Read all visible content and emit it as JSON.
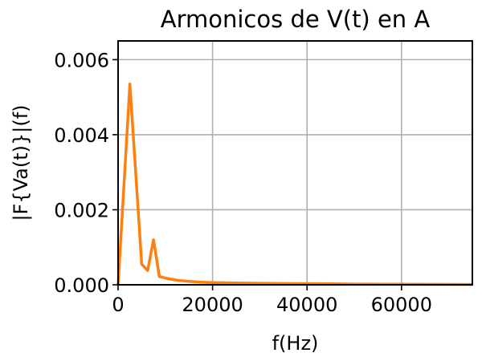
{
  "chart_data": {
    "type": "line",
    "title": "Armonicos de V(t) en A",
    "xlabel": "f(Hz)",
    "ylabel": "|F{Va(t)}|(f)",
    "xlim": [
      0,
      75000
    ],
    "ylim": [
      0,
      0.0065
    ],
    "xticks": [
      0,
      20000,
      40000,
      60000
    ],
    "xtick_labels": [
      "0",
      "20000",
      "40000",
      "60000"
    ],
    "yticks": [
      0,
      0.002,
      0.004,
      0.006
    ],
    "ytick_labels": [
      "0.000",
      "0.002",
      "0.004",
      "0.006"
    ],
    "grid": true,
    "series": [
      {
        "color": "#ff7f0e",
        "x": [
          0,
          2500,
          5000,
          6250,
          7500,
          8750,
          10000,
          12500,
          15000,
          17500,
          20000,
          25000,
          30000,
          35000,
          40000,
          45000,
          50000,
          55000,
          60000,
          65000,
          70000,
          75000
        ],
        "y": [
          0.0,
          0.00535,
          0.00055,
          0.00038,
          0.0012,
          0.00022,
          0.00018,
          0.00012,
          9e-05,
          7e-05,
          6e-05,
          5e-05,
          4e-05,
          3.5e-05,
          3e-05,
          2.5e-05,
          2e-05,
          1.8e-05,
          1.5e-05,
          1.2e-05,
          1e-05,
          8e-06
        ]
      }
    ]
  }
}
